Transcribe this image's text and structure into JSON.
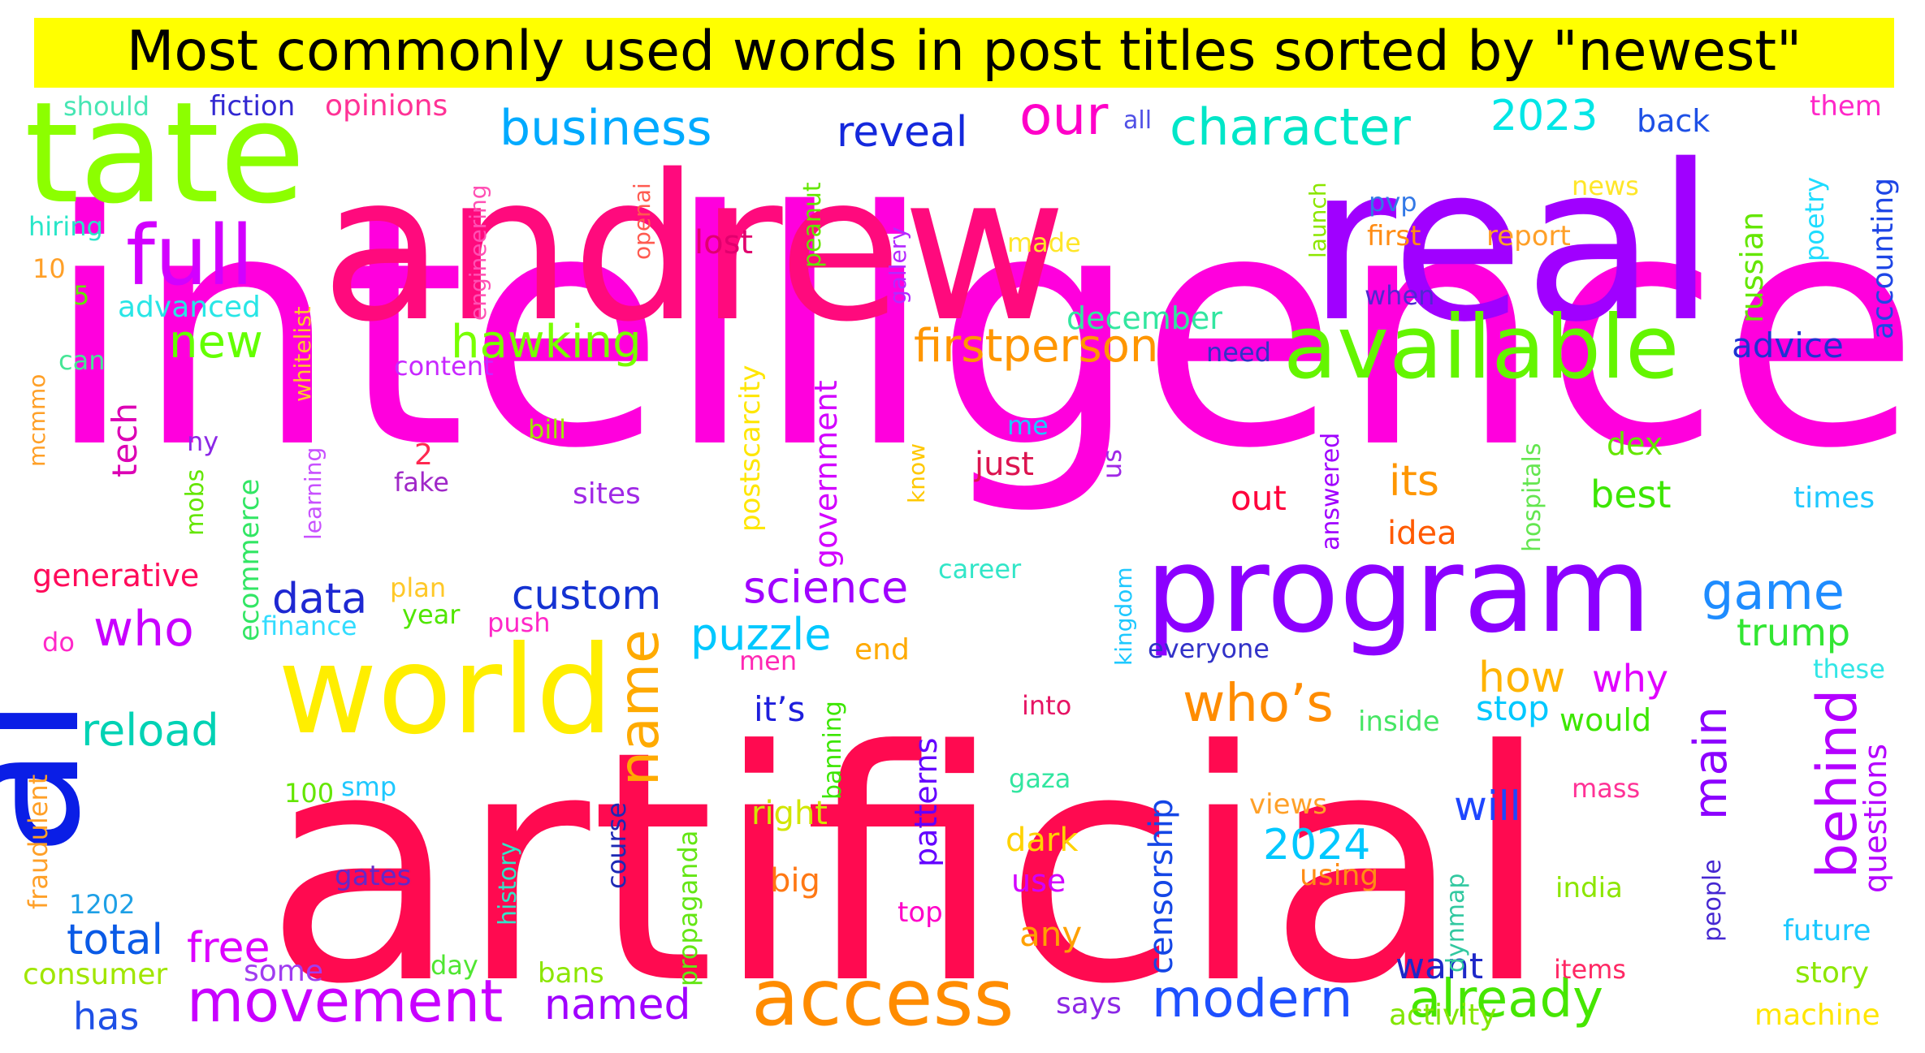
{
  "chart_data": {
    "type": "wordcloud",
    "title": "Most commonly used words in post titles sorted by \"newest\"",
    "colors": {
      "title_bg": "#ffff00",
      "title_text": "#000000",
      "background": "#ffffff"
    },
    "words": [
      {
        "text": "intelligence",
        "weight": 100,
        "color": "#ff00dd"
      },
      {
        "text": "artificial",
        "weight": 98,
        "color": "#ff0a50"
      },
      {
        "text": "andrew",
        "weight": 72,
        "color": "#ff0a7d"
      },
      {
        "text": "real",
        "weight": 62,
        "color": "#a000ff"
      },
      {
        "text": "ai",
        "weight": 55,
        "color": "#0a1ee6"
      },
      {
        "text": "tate",
        "weight": 36,
        "color": "#8cff00"
      },
      {
        "text": "world",
        "weight": 34,
        "color": "#ffee00"
      },
      {
        "text": "program",
        "weight": 32,
        "color": "#8c00ff"
      },
      {
        "text": "available",
        "weight": 22,
        "color": "#64f500"
      },
      {
        "text": "access",
        "weight": 20,
        "color": "#ff8c00"
      },
      {
        "text": "full",
        "weight": 15,
        "color": "#d200ff"
      },
      {
        "text": "movement",
        "weight": 14,
        "color": "#c800ff"
      },
      {
        "text": "name",
        "weight": 14,
        "color": "#ffaa00"
      },
      {
        "text": "behind",
        "weight": 14,
        "color": "#b400ff"
      },
      {
        "text": "modern",
        "weight": 13,
        "color": "#1e50ff"
      },
      {
        "text": "already",
        "weight": 13,
        "color": "#46e600"
      },
      {
        "text": "who’s",
        "weight": 13,
        "color": "#ff8c00"
      },
      {
        "text": "character",
        "weight": 12,
        "color": "#00e6c8"
      },
      {
        "text": "business",
        "weight": 12,
        "color": "#00aaff"
      },
      {
        "text": "our",
        "weight": 12,
        "color": "#ff00c8"
      },
      {
        "text": "game",
        "weight": 12,
        "color": "#1e8cff"
      },
      {
        "text": "main",
        "weight": 11,
        "color": "#8c00ff"
      },
      {
        "text": "hawking",
        "weight": 11,
        "color": "#78ff00"
      },
      {
        "text": "firstperson",
        "weight": 11,
        "color": "#ff9600"
      },
      {
        "text": "who",
        "weight": 11,
        "color": "#c800ff"
      },
      {
        "text": "science",
        "weight": 10,
        "color": "#a000ff"
      },
      {
        "text": "new",
        "weight": 10,
        "color": "#64ff00"
      },
      {
        "text": "reveal",
        "weight": 10,
        "color": "#1428dc"
      },
      {
        "text": "reload",
        "weight": 10,
        "color": "#00d2b4"
      },
      {
        "text": "puzzle",
        "weight": 10,
        "color": "#00c8ff"
      },
      {
        "text": "data",
        "weight": 10,
        "color": "#1e28d2"
      },
      {
        "text": "custom",
        "weight": 10,
        "color": "#1432d2"
      },
      {
        "text": "2023",
        "weight": 9,
        "color": "#00e6e6"
      },
      {
        "text": "how",
        "weight": 9,
        "color": "#ffb400"
      },
      {
        "text": "free",
        "weight": 9,
        "color": "#dc00ff"
      },
      {
        "text": "total",
        "weight": 9,
        "color": "#0a5ae6"
      },
      {
        "text": "2024",
        "weight": 9,
        "color": "#00c8ff"
      },
      {
        "text": "named",
        "weight": 9,
        "color": "#a000ff"
      },
      {
        "text": "censorship",
        "weight": 9,
        "color": "#1446e6"
      },
      {
        "text": "will",
        "weight": 9,
        "color": "#1e46ff"
      },
      {
        "text": "questions",
        "weight": 9,
        "color": "#b400ff"
      },
      {
        "text": "trump",
        "weight": 8,
        "color": "#32e632"
      },
      {
        "text": "why",
        "weight": 8,
        "color": "#e100ff"
      },
      {
        "text": "its",
        "weight": 8,
        "color": "#ff9600"
      },
      {
        "text": "best",
        "weight": 8,
        "color": "#3ce600"
      },
      {
        "text": "advice",
        "weight": 8,
        "color": "#1e32d2"
      },
      {
        "text": "accounting",
        "weight": 8,
        "color": "#1e46e6"
      },
      {
        "text": "russian",
        "weight": 8,
        "color": "#64e600"
      },
      {
        "text": "government",
        "weight": 8,
        "color": "#d200ff"
      },
      {
        "text": "tech",
        "weight": 8,
        "color": "#dc00b4"
      },
      {
        "text": "has",
        "weight": 8,
        "color": "#1e50e6"
      },
      {
        "text": "want",
        "weight": 8,
        "color": "#1e28c8"
      },
      {
        "text": "stop",
        "weight": 8,
        "color": "#00c8ff"
      },
      {
        "text": "patterns",
        "weight": 8,
        "color": "#6400ff"
      },
      {
        "text": "it’s",
        "weight": 8,
        "color": "#1e1edc"
      },
      {
        "text": "out",
        "weight": 8,
        "color": "#ff003c"
      },
      {
        "text": "dex",
        "weight": 7,
        "color": "#64e600"
      },
      {
        "text": "idea",
        "weight": 7,
        "color": "#ff5a00"
      },
      {
        "text": "december",
        "weight": 7,
        "color": "#32e6a0"
      },
      {
        "text": "ecommerce",
        "weight": 7,
        "color": "#32e664"
      },
      {
        "text": "course",
        "weight": 7,
        "color": "#1e28b4"
      },
      {
        "text": "propaganda",
        "weight": 7,
        "color": "#64e614"
      },
      {
        "text": "postscarcity",
        "weight": 7,
        "color": "#ffe600"
      },
      {
        "text": "times",
        "weight": 7,
        "color": "#1ec8ff"
      },
      {
        "text": "future",
        "weight": 7,
        "color": "#1ec8ff"
      },
      {
        "text": "story",
        "weight": 7,
        "color": "#8ce600"
      },
      {
        "text": "machine",
        "weight": 7,
        "color": "#ffe600"
      },
      {
        "text": "activity",
        "weight": 7,
        "color": "#82e600"
      },
      {
        "text": "says",
        "weight": 7,
        "color": "#8c28e6"
      },
      {
        "text": "any",
        "weight": 7,
        "color": "#ffa000"
      },
      {
        "text": "dark",
        "weight": 7,
        "color": "#ffd200"
      },
      {
        "text": "right",
        "weight": 7,
        "color": "#d2e600"
      },
      {
        "text": "big",
        "weight": 7,
        "color": "#ff7814"
      },
      {
        "text": "just",
        "weight": 7,
        "color": "#dc1450"
      },
      {
        "text": "would",
        "weight": 7,
        "color": "#3ce600"
      },
      {
        "text": "back",
        "weight": 7,
        "color": "#1e50e6"
      },
      {
        "text": "lost",
        "weight": 7,
        "color": "#e1006e"
      },
      {
        "text": "some",
        "weight": 7,
        "color": "#a03cf0"
      },
      {
        "text": "consumer",
        "weight": 7,
        "color": "#a0e600"
      },
      {
        "text": "generative",
        "weight": 7,
        "color": "#ff0a5a"
      },
      {
        "text": "fraudulent",
        "weight": 7,
        "color": "#ffa028"
      },
      {
        "text": "sites",
        "weight": 6,
        "color": "#a028e6"
      },
      {
        "text": "use",
        "weight": 6,
        "color": "#d200ff"
      },
      {
        "text": "gates",
        "weight": 6,
        "color": "#6428c8"
      },
      {
        "text": "using",
        "weight": 6,
        "color": "#ff8c14"
      },
      {
        "text": "people",
        "weight": 6,
        "color": "#4628d2"
      },
      {
        "text": "history",
        "weight": 6,
        "color": "#32e6c8"
      },
      {
        "text": "dynmap",
        "weight": 6,
        "color": "#32c8a0"
      },
      {
        "text": "kingdom",
        "weight": 6,
        "color": "#1ec8ff"
      },
      {
        "text": "hospitals",
        "weight": 6,
        "color": "#64e650"
      },
      {
        "text": "answered",
        "weight": 6,
        "color": "#a000ff"
      },
      {
        "text": "banning",
        "weight": 6,
        "color": "#3ce600"
      },
      {
        "text": "bans",
        "weight": 6,
        "color": "#8ce600"
      },
      {
        "text": "end",
        "weight": 6,
        "color": "#ffaa00"
      },
      {
        "text": "top",
        "weight": 6,
        "color": "#ff00c8"
      },
      {
        "text": "views",
        "weight": 6,
        "color": "#ffa028"
      },
      {
        "text": "mass",
        "weight": 6,
        "color": "#ff3296"
      },
      {
        "text": "items",
        "weight": 6,
        "color": "#ff2864"
      },
      {
        "text": "india",
        "weight": 6,
        "color": "#8ce600"
      },
      {
        "text": "poetry",
        "weight": 6,
        "color": "#1edcff"
      },
      {
        "text": "opinions",
        "weight": 6,
        "color": "#ff3296"
      },
      {
        "text": "fiction",
        "weight": 6,
        "color": "#3228d2"
      },
      {
        "text": "should",
        "weight": 6,
        "color": "#46e6b4"
      },
      {
        "text": "them",
        "weight": 6,
        "color": "#ff28c8"
      },
      {
        "text": "engineering",
        "weight": 6,
        "color": "#ff50b4"
      },
      {
        "text": "peanut",
        "weight": 6,
        "color": "#64e600"
      },
      {
        "text": "gallery",
        "weight": 6,
        "color": "#b428ff"
      },
      {
        "text": "launch",
        "weight": 6,
        "color": "#8ce600"
      },
      {
        "text": "report",
        "weight": 6,
        "color": "#ffa028"
      },
      {
        "text": "first",
        "weight": 6,
        "color": "#ff8c14"
      },
      {
        "text": "news",
        "weight": 6,
        "color": "#ffe628"
      },
      {
        "text": "whitelist",
        "weight": 6,
        "color": "#ffc828"
      },
      {
        "text": "learning",
        "weight": 6,
        "color": "#c850ff"
      },
      {
        "text": "mobs",
        "weight": 6,
        "color": "#64e600"
      },
      {
        "text": "plan",
        "weight": 6,
        "color": "#ffc828"
      },
      {
        "text": "year",
        "weight": 6,
        "color": "#50e600"
      },
      {
        "text": "push",
        "weight": 6,
        "color": "#ff28c8"
      },
      {
        "text": "finance",
        "weight": 6,
        "color": "#32dcff"
      },
      {
        "text": "career",
        "weight": 6,
        "color": "#32e6c8"
      },
      {
        "text": "know",
        "weight": 6,
        "color": "#ffc800"
      },
      {
        "text": "everyone",
        "weight": 6,
        "color": "#3232c8"
      },
      {
        "text": "inside",
        "weight": 6,
        "color": "#46e664"
      },
      {
        "text": "these",
        "weight": 6,
        "color": "#32e6e6"
      },
      {
        "text": "men",
        "weight": 6,
        "color": "#ff28b4"
      },
      {
        "text": "into",
        "weight": 6,
        "color": "#e61464"
      },
      {
        "text": "gaza",
        "weight": 6,
        "color": "#32e6a0"
      },
      {
        "text": "smp",
        "weight": 6,
        "color": "#1ec8ff"
      },
      {
        "text": "100",
        "weight": 6,
        "color": "#64e600"
      },
      {
        "text": "1202",
        "weight": 6,
        "color": "#1ea0e6"
      },
      {
        "text": "day",
        "weight": 6,
        "color": "#50e632"
      },
      {
        "text": "do",
        "weight": 6,
        "color": "#ff28c8"
      },
      {
        "text": "us",
        "weight": 6,
        "color": "#a028e6"
      },
      {
        "text": "me",
        "weight": 6,
        "color": "#1ec8ff"
      },
      {
        "text": "fake",
        "weight": 6,
        "color": "#a028c8"
      },
      {
        "text": "2",
        "weight": 6,
        "color": "#ff2850"
      },
      {
        "text": "bill",
        "weight": 6,
        "color": "#a0e600"
      },
      {
        "text": "ny",
        "weight": 6,
        "color": "#8c28e6"
      },
      {
        "text": "content",
        "weight": 6,
        "color": "#c828ff"
      },
      {
        "text": "mcmmo",
        "weight": 6,
        "color": "#ffa028"
      },
      {
        "text": "can",
        "weight": 6,
        "color": "#46e696"
      },
      {
        "text": "advanced",
        "weight": 6,
        "color": "#28e6e6"
      },
      {
        "text": "hiring",
        "weight": 6,
        "color": "#28e6c8"
      },
      {
        "text": "10",
        "weight": 6,
        "color": "#ffa028"
      },
      {
        "text": "5",
        "weight": 6,
        "color": "#64e600"
      },
      {
        "text": "openai",
        "weight": 6,
        "color": "#ff5a50"
      },
      {
        "text": "made",
        "weight": 6,
        "color": "#ffe628"
      },
      {
        "text": "pvp",
        "weight": 6,
        "color": "#3278e6"
      },
      {
        "text": "when",
        "weight": 6,
        "color": "#5028d2"
      },
      {
        "text": "need",
        "weight": 6,
        "color": "#3232c8"
      },
      {
        "text": "all",
        "weight": 6,
        "color": "#5050e6"
      }
    ]
  }
}
